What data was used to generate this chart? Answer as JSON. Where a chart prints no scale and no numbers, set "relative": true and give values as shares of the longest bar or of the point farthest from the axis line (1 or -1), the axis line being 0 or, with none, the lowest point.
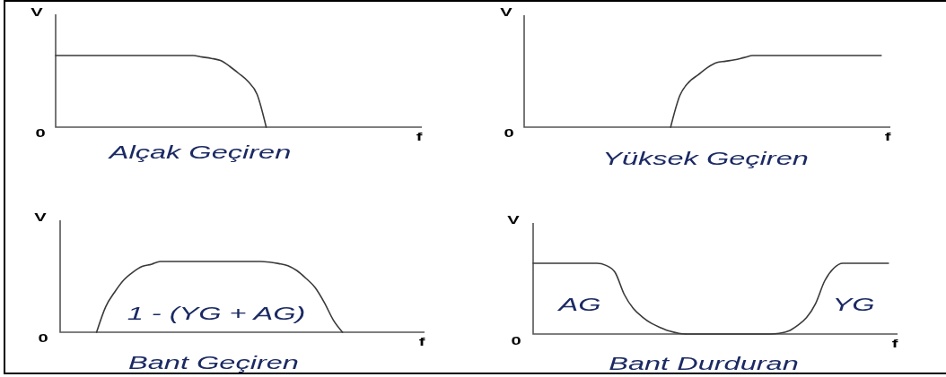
{
  "chart_data": [
    {
      "type": "line",
      "title": "Alçak Geçiren",
      "xlabel": "f",
      "ylabel": "V",
      "relative": true,
      "annotations": [
        "0"
      ],
      "categories": [
        null,
        null,
        null,
        null,
        null,
        null,
        null,
        null,
        null,
        null,
        null,
        null,
        null,
        null,
        null,
        null,
        null,
        null,
        null,
        null,
        null,
        null,
        null,
        null,
        null,
        null,
        null,
        null,
        null,
        null,
        null,
        null,
        null,
        null,
        null,
        null,
        null,
        null,
        null,
        null,
        null
      ],
      "series": [
        {
          "color": "#3a3a3a",
          "values": [
            1,
            1,
            1,
            1,
            1,
            1,
            1,
            1,
            1,
            1,
            1,
            1,
            1,
            1,
            1,
            1,
            0.98,
            0.96,
            0.93,
            0.85,
            0.75,
            0.64,
            0.46,
            0,
            null,
            null,
            null,
            null,
            null,
            null,
            null,
            null,
            null,
            null,
            null,
            null,
            null,
            null,
            null,
            null,
            null
          ]
        }
      ]
    },
    {
      "type": "line",
      "title": "Yüksek Geçiren",
      "xlabel": "f",
      "ylabel": "V",
      "relative": true,
      "annotations": [
        "0"
      ],
      "categories": [
        null,
        null,
        null,
        null,
        null,
        null,
        null,
        null,
        null,
        null,
        null,
        null,
        null,
        null,
        null,
        null,
        null,
        null,
        null,
        null,
        null,
        null,
        null,
        null,
        null,
        null,
        null,
        null,
        null,
        null,
        null,
        null,
        null,
        null,
        null,
        null,
        null,
        null,
        null,
        null,
        null
      ],
      "series": [
        {
          "color": "#3a3a3a",
          "values": [
            null,
            null,
            null,
            null,
            null,
            null,
            null,
            null,
            null,
            null,
            null,
            null,
            null,
            null,
            null,
            null,
            0,
            0.44,
            0.63,
            0.73,
            0.83,
            0.9,
            0.92,
            0.94,
            0.97,
            1,
            1,
            1,
            1,
            1,
            1,
            1,
            1,
            1,
            1,
            1,
            1,
            1,
            1,
            1,
            null
          ]
        }
      ]
    },
    {
      "type": "line",
      "title": "Bant Geçiren",
      "xlabel": "f",
      "ylabel": "V",
      "relative": true,
      "annotations": [
        "0",
        "1 - (YG + AG)"
      ],
      "categories": [
        null,
        null,
        null,
        null,
        null,
        null,
        null,
        null,
        null,
        null,
        null,
        null,
        null,
        null,
        null,
        null,
        null,
        null,
        null,
        null,
        null,
        null,
        null,
        null,
        null,
        null,
        null,
        null,
        null,
        null,
        null,
        null,
        null,
        null,
        null,
        null,
        null,
        null,
        null,
        null,
        null
      ],
      "series": [
        {
          "color": "#3a3a3a",
          "values": [
            null,
            null,
            null,
            null,
            0,
            0.36,
            0.57,
            0.74,
            0.85,
            0.93,
            0.96,
            1,
            1,
            1,
            1,
            1,
            1,
            1,
            1,
            1,
            1,
            1,
            1,
            0.99,
            0.97,
            0.94,
            0.87,
            0.76,
            0.63,
            0.42,
            0.17,
            0,
            null,
            null,
            null,
            null,
            null,
            null,
            null,
            null,
            null
          ]
        }
      ]
    },
    {
      "type": "line",
      "title": "Bant Durduran",
      "xlabel": "f",
      "ylabel": "V",
      "relative": true,
      "annotations": [
        "0",
        "AG",
        "YG"
      ],
      "categories": [
        null,
        null,
        null,
        null,
        null,
        null,
        null,
        null,
        null,
        null,
        null,
        null,
        null,
        null,
        null,
        null,
        null,
        null,
        null,
        null,
        null,
        null,
        null,
        null,
        null,
        null,
        null,
        null,
        null,
        null,
        null,
        null,
        null,
        null,
        null,
        null,
        null,
        null,
        null,
        null,
        null
      ],
      "series": [
        {
          "color": "#3a3a3a",
          "values": [
            1,
            1,
            1,
            1,
            1,
            1,
            1,
            1,
            0.97,
            0.87,
            0.56,
            0.36,
            0.24,
            0.15,
            0.09,
            0.04,
            0.01,
            0,
            0,
            0,
            0,
            0,
            0,
            0,
            0,
            0,
            0,
            0.01,
            0.04,
            0.12,
            0.23,
            0.43,
            0.75,
            0.93,
            1,
            1,
            1,
            1,
            1,
            1,
            null
          ]
        }
      ]
    }
  ]
}
